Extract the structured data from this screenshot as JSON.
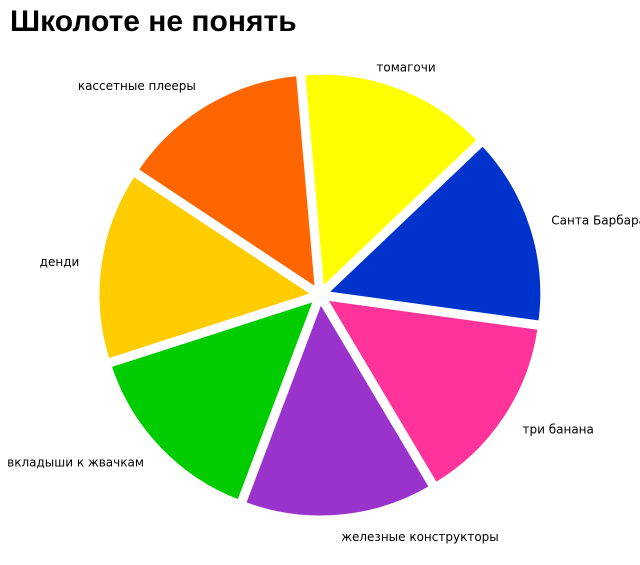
{
  "chart_data": {
    "type": "pie",
    "title": "Школоте не понять",
    "start_angle_deg": -95,
    "slices": [
      {
        "label": "томагочи",
        "value": 1,
        "color": "#ffff00",
        "anchor": "middle"
      },
      {
        "label": "Санта Барбара",
        "value": 1,
        "color": "#0033cc",
        "anchor": "start"
      },
      {
        "label": "три банана",
        "value": 1,
        "color": "#ff3399",
        "anchor": "start"
      },
      {
        "label": "железные конструкторы",
        "value": 1,
        "color": "#9933cc",
        "anchor": "start"
      },
      {
        "label": "вкладыши к жвачкам",
        "value": 1,
        "color": "#00cc00",
        "anchor": "end"
      },
      {
        "label": "денди",
        "value": 1,
        "color": "#ffcc00",
        "anchor": "end"
      },
      {
        "label": "кассетные плееры",
        "value": 1,
        "color": "#ff6600",
        "anchor": "end"
      }
    ]
  }
}
